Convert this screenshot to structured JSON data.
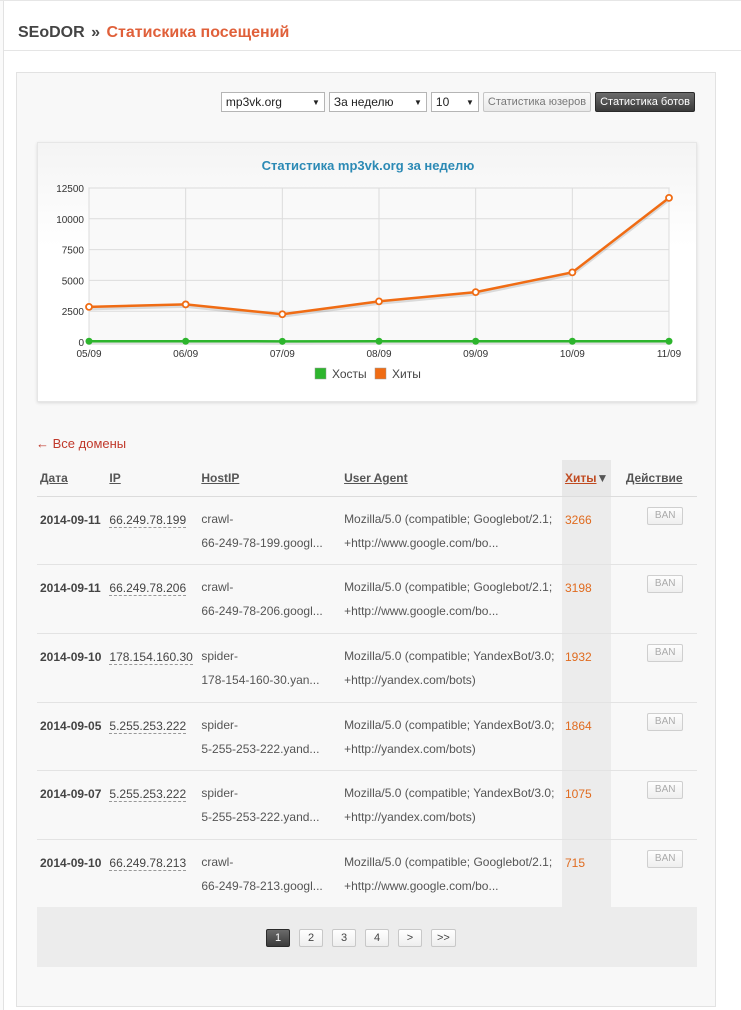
{
  "header": {
    "site": "SEoDOR",
    "separator": "»",
    "page_title": "Статискика посещений"
  },
  "controls": {
    "domain_select": "mp3vk.org",
    "period_select": "За неделю",
    "count_select": "10",
    "users_button": "Статистика юзеров",
    "bots_button": "Статистика ботов"
  },
  "chart_data": {
    "type": "line",
    "title": "Статистика mp3vk.org за неделю",
    "categories": [
      "05/09",
      "06/09",
      "07/09",
      "08/09",
      "09/09",
      "10/09",
      "11/09"
    ],
    "y_ticks": [
      "0",
      "2500",
      "5000",
      "7500",
      "10000",
      "12500"
    ],
    "ylim": [
      0,
      12500
    ],
    "series": [
      {
        "name": "Хосты",
        "color": "#2db52d",
        "values": [
          60,
          60,
          55,
          60,
          60,
          60,
          60
        ]
      },
      {
        "name": "Хиты",
        "color": "#f06c14",
        "values": [
          2850,
          3050,
          2250,
          3300,
          4050,
          5650,
          11700
        ]
      }
    ],
    "grid": true,
    "legend": "bottom"
  },
  "back_link": "← Все домены",
  "table": {
    "headers": {
      "date": "Дата",
      "ip": "IP",
      "host": "HostIP",
      "ua": "User Agent",
      "hits": "Хиты",
      "sort_arrow": "▼",
      "action": "Действие"
    },
    "rows": [
      {
        "date": "2014-09-11",
        "ip": "66.249.78.199",
        "host1": "crawl-",
        "host2": "66-249-78-199.googl...",
        "ua1": "Mozilla/5.0 (compatible; Googlebot/2.1;",
        "ua2": "+http://www.google.com/bo...",
        "hits": "3266",
        "ban": "BAN"
      },
      {
        "date": "2014-09-11",
        "ip": "66.249.78.206",
        "host1": "crawl-",
        "host2": "66-249-78-206.googl...",
        "ua1": "Mozilla/5.0 (compatible; Googlebot/2.1;",
        "ua2": "+http://www.google.com/bo...",
        "hits": "3198",
        "ban": "BAN"
      },
      {
        "date": "2014-09-10",
        "ip": "178.154.160.30",
        "host1": "spider-",
        "host2": "178-154-160-30.yan...",
        "ua1": "Mozilla/5.0 (compatible; YandexBot/3.0;",
        "ua2": "+http://yandex.com/bots)",
        "hits": "1932",
        "ban": "BAN"
      },
      {
        "date": "2014-09-05",
        "ip": "5.255.253.222",
        "host1": "spider-",
        "host2": "5-255-253-222.yand...",
        "ua1": "Mozilla/5.0 (compatible; YandexBot/3.0;",
        "ua2": "+http://yandex.com/bots)",
        "hits": "1864",
        "ban": "BAN"
      },
      {
        "date": "2014-09-07",
        "ip": "5.255.253.222",
        "host1": "spider-",
        "host2": "5-255-253-222.yand...",
        "ua1": "Mozilla/5.0 (compatible; YandexBot/3.0;",
        "ua2": "+http://yandex.com/bots)",
        "hits": "1075",
        "ban": "BAN"
      },
      {
        "date": "2014-09-10",
        "ip": "66.249.78.213",
        "host1": "crawl-",
        "host2": "66-249-78-213.googl...",
        "ua1": "Mozilla/5.0 (compatible; Googlebot/2.1;",
        "ua2": "+http://www.google.com/bo...",
        "hits": "715",
        "ban": "BAN"
      }
    ]
  },
  "pagination": {
    "pages": [
      "1",
      "2",
      "3",
      "4"
    ],
    "next": ">",
    "last": ">>",
    "current": "1"
  }
}
